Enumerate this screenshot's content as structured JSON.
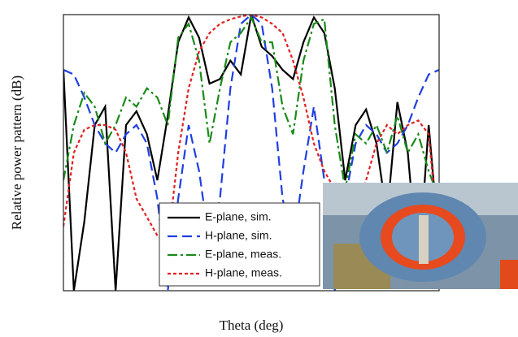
{
  "chart_data": {
    "type": "line",
    "x_label": "Theta (deg)",
    "y_label": "Relative power pattern (dB)",
    "x": [
      -180,
      -170,
      -160,
      -150,
      -140,
      -130,
      -120,
      -110,
      -100,
      -90,
      -80,
      -70,
      -60,
      -50,
      -40,
      -30,
      -20,
      -10,
      0,
      10,
      20,
      30,
      40,
      50,
      60,
      70,
      80,
      90,
      100,
      110,
      120,
      130,
      140,
      150,
      160,
      170,
      180
    ],
    "series": [
      {
        "name": "E-plane, sim.",
        "color": "#000000",
        "style": "solid",
        "values": [
          -6,
          -30,
          -22.5,
          -12,
          -10,
          -30,
          -12,
          -10.5,
          -13,
          -18,
          -11,
          -3,
          -0.3,
          -2.5,
          -7.5,
          -7,
          -5,
          -6.5,
          0,
          -3.5,
          -4.5,
          -6,
          -7,
          -3,
          -0.3,
          -2,
          -8,
          -18,
          -12,
          -10.3,
          -14,
          -22,
          -9.5,
          -15,
          -28,
          -12,
          -25
        ]
      },
      {
        "name": "H-plane, sim.",
        "color": "#1f3fe0",
        "style": "dashed",
        "values": [
          -6,
          -6.5,
          -9,
          -12,
          -14,
          -15,
          -13,
          -12,
          -14,
          -20,
          -30,
          -20,
          -12,
          -17,
          -25,
          -20,
          -8,
          -1,
          0,
          -1,
          -8,
          -20,
          -25,
          -17,
          -10,
          -18,
          -30,
          -20,
          -14,
          -12,
          -13,
          -15,
          -14,
          -12,
          -9,
          -6.5,
          -6
        ]
      },
      {
        "name": "E-plane, meas.",
        "color": "#1a8a1a",
        "style": "dashdot",
        "values": [
          -18,
          -12,
          -8.5,
          -10,
          -14,
          -12,
          -9,
          -10,
          -8,
          -9,
          -12,
          -2.5,
          -1,
          -5,
          -14,
          -8,
          -3,
          -2,
          -0.3,
          -3,
          -3,
          -10,
          -13,
          -5,
          -1,
          -0.5,
          -12,
          -19,
          -13,
          -14,
          -12,
          -15,
          -11,
          -15,
          -13,
          -17,
          -20
        ]
      },
      {
        "name": "H-plane, meas.",
        "color": "#e02020",
        "style": "dotted",
        "values": [
          -23,
          -15,
          -12.5,
          -12,
          -12,
          -12.5,
          -15,
          -20,
          -22,
          -24,
          -25,
          -15,
          -8,
          -4,
          -2,
          -1,
          -0.5,
          -0.2,
          0,
          -0.3,
          -1,
          -2,
          -5,
          -9,
          -14,
          -17,
          -19,
          -20,
          -22,
          -18,
          -14,
          -12,
          -13,
          -12,
          -11.5,
          -13,
          -25
        ]
      }
    ],
    "xlim": [
      -180,
      180
    ],
    "xticks": [
      -180,
      -90,
      0,
      90,
      180
    ],
    "ylim": [
      -30,
      0
    ],
    "yticks": [
      -30,
      -20,
      -10,
      0
    ],
    "grid": true,
    "legend": "lower center"
  }
}
